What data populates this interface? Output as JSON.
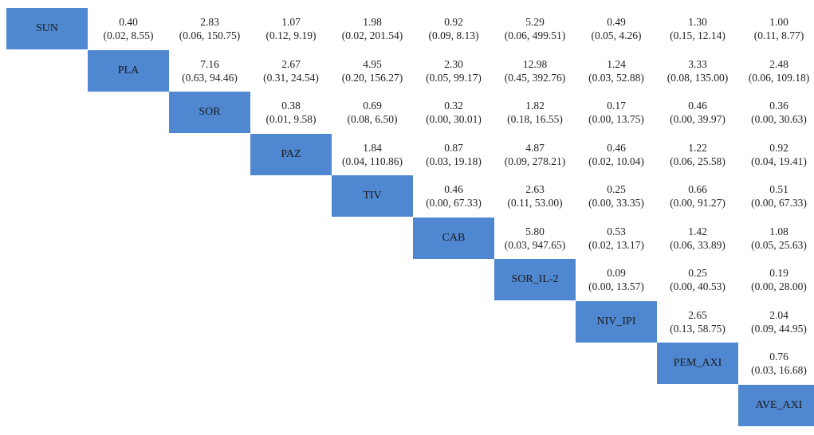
{
  "chart_data": {
    "type": "table",
    "treatments": [
      "SUN",
      "PLA",
      "SOR",
      "PAZ",
      "TIV",
      "CAB",
      "SOR_IL-2",
      "NIV_IPI",
      "PEM_AXI",
      "AVE_AXI"
    ],
    "colors": {
      "diagonal": "#4f88d0",
      "text": "#222222",
      "background": "#ffffff"
    },
    "comparisons": [
      {
        "row": "SUN",
        "col": "PLA",
        "estimate": "0.40",
        "ci": "(0.02, 8.55)"
      },
      {
        "row": "SUN",
        "col": "SOR",
        "estimate": "2.83",
        "ci": "(0.06, 150.75)"
      },
      {
        "row": "SUN",
        "col": "PAZ",
        "estimate": "1.07",
        "ci": "(0.12, 9.19)"
      },
      {
        "row": "SUN",
        "col": "TIV",
        "estimate": "1.98",
        "ci": "(0.02, 201.54)"
      },
      {
        "row": "SUN",
        "col": "CAB",
        "estimate": "0.92",
        "ci": "(0.09, 8.13)"
      },
      {
        "row": "SUN",
        "col": "SOR_IL-2",
        "estimate": "5.29",
        "ci": "(0.06, 499.51)"
      },
      {
        "row": "SUN",
        "col": "NIV_IPI",
        "estimate": "0.49",
        "ci": "(0.05, 4.26)"
      },
      {
        "row": "SUN",
        "col": "PEM_AXI",
        "estimate": "1.30",
        "ci": "(0.15, 12.14)"
      },
      {
        "row": "SUN",
        "col": "AVE_AXI",
        "estimate": "1.00",
        "ci": "(0.11, 8.77)"
      },
      {
        "row": "PLA",
        "col": "SOR",
        "estimate": "7.16",
        "ci": "(0.63, 94.46)"
      },
      {
        "row": "PLA",
        "col": "PAZ",
        "estimate": "2.67",
        "ci": "(0.31, 24.54)"
      },
      {
        "row": "PLA",
        "col": "TIV",
        "estimate": "4.95",
        "ci": "(0.20, 156.27)"
      },
      {
        "row": "PLA",
        "col": "CAB",
        "estimate": "2.30",
        "ci": "(0.05, 99.17)"
      },
      {
        "row": "PLA",
        "col": "SOR_IL-2",
        "estimate": "12.98",
        "ci": "(0.45, 392.76)"
      },
      {
        "row": "PLA",
        "col": "NIV_IPI",
        "estimate": "1.24",
        "ci": "(0.03, 52.88)"
      },
      {
        "row": "PLA",
        "col": "PEM_AXI",
        "estimate": "3.33",
        "ci": "(0.08, 135.00)"
      },
      {
        "row": "PLA",
        "col": "AVE_AXI",
        "estimate": "2.48",
        "ci": "(0.06, 109.18)"
      },
      {
        "row": "SOR",
        "col": "PAZ",
        "estimate": "0.38",
        "ci": "(0.01, 9.58)"
      },
      {
        "row": "SOR",
        "col": "TIV",
        "estimate": "0.69",
        "ci": "(0.08, 6.50)"
      },
      {
        "row": "SOR",
        "col": "CAB",
        "estimate": "0.32",
        "ci": "(0.00, 30.01)"
      },
      {
        "row": "SOR",
        "col": "SOR_IL-2",
        "estimate": "1.82",
        "ci": "(0.18, 16.55)"
      },
      {
        "row": "SOR",
        "col": "NIV_IPI",
        "estimate": "0.17",
        "ci": "(0.00, 13.75)"
      },
      {
        "row": "SOR",
        "col": "PEM_AXI",
        "estimate": "0.46",
        "ci": "(0.00, 39.97)"
      },
      {
        "row": "SOR",
        "col": "AVE_AXI",
        "estimate": "0.36",
        "ci": "(0.00, 30.63)"
      },
      {
        "row": "PAZ",
        "col": "TIV",
        "estimate": "1.84",
        "ci": "(0.04, 110.86)"
      },
      {
        "row": "PAZ",
        "col": "CAB",
        "estimate": "0.87",
        "ci": "(0.03, 19.18)"
      },
      {
        "row": "PAZ",
        "col": "SOR_IL-2",
        "estimate": "4.87",
        "ci": "(0.09, 278.21)"
      },
      {
        "row": "PAZ",
        "col": "NIV_IPI",
        "estimate": "0.46",
        "ci": "(0.02, 10.04)"
      },
      {
        "row": "PAZ",
        "col": "PEM_AXI",
        "estimate": "1.22",
        "ci": "(0.06, 25.58)"
      },
      {
        "row": "PAZ",
        "col": "AVE_AXI",
        "estimate": "0.92",
        "ci": "(0.04, 19.41)"
      },
      {
        "row": "TIV",
        "col": "CAB",
        "estimate": "0.46",
        "ci": "(0.00, 67.33)"
      },
      {
        "row": "TIV",
        "col": "SOR_IL-2",
        "estimate": "2.63",
        "ci": "(0.11, 53.00)"
      },
      {
        "row": "TIV",
        "col": "NIV_IPI",
        "estimate": "0.25",
        "ci": "(0.00, 33.35)"
      },
      {
        "row": "TIV",
        "col": "PEM_AXI",
        "estimate": "0.66",
        "ci": "(0.00, 91.27)"
      },
      {
        "row": "TIV",
        "col": "AVE_AXI",
        "estimate": "0.51",
        "ci": "(0.00, 67.33)"
      },
      {
        "row": "CAB",
        "col": "SOR_IL-2",
        "estimate": "5.80",
        "ci": "(0.03, 947.65)"
      },
      {
        "row": "CAB",
        "col": "NIV_IPI",
        "estimate": "0.53",
        "ci": "(0.02, 13.17)"
      },
      {
        "row": "CAB",
        "col": "PEM_AXI",
        "estimate": "1.42",
        "ci": "(0.06, 33.89)"
      },
      {
        "row": "CAB",
        "col": "AVE_AXI",
        "estimate": "1.08",
        "ci": "(0.05, 25.63)"
      },
      {
        "row": "SOR_IL-2",
        "col": "NIV_IPI",
        "estimate": "0.09",
        "ci": "(0.00, 13.57)"
      },
      {
        "row": "SOR_IL-2",
        "col": "PEM_AXI",
        "estimate": "0.25",
        "ci": "(0.00, 40.53)"
      },
      {
        "row": "SOR_IL-2",
        "col": "AVE_AXI",
        "estimate": "0.19",
        "ci": "(0.00, 28.00)"
      },
      {
        "row": "NIV_IPI",
        "col": "PEM_AXI",
        "estimate": "2.65",
        "ci": "(0.13, 58.75)"
      },
      {
        "row": "NIV_IPI",
        "col": "AVE_AXI",
        "estimate": "2.04",
        "ci": "(0.09, 44.95)"
      },
      {
        "row": "PEM_AXI",
        "col": "AVE_AXI",
        "estimate": "0.76",
        "ci": "(0.03, 16.68)"
      }
    ]
  }
}
